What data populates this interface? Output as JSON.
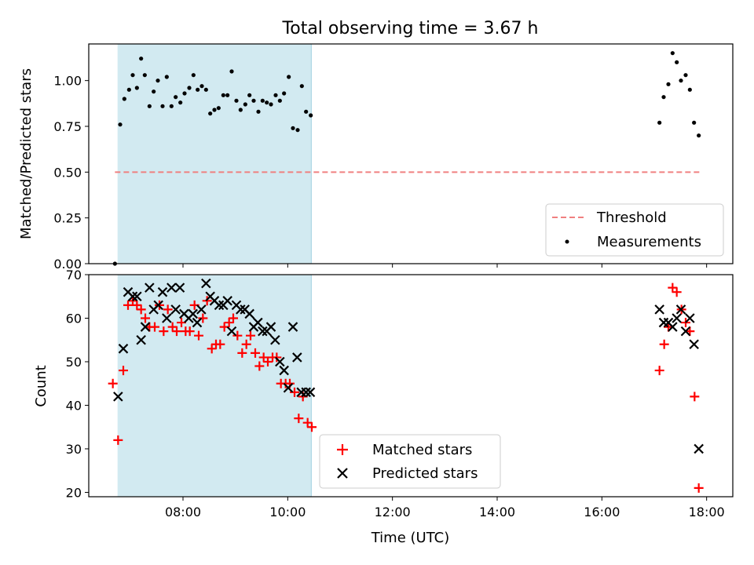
{
  "title": "Total observing time = 3.67 h",
  "colors": {
    "shade": "#add8e6",
    "threshold": "#f08080",
    "measurements": "#000000",
    "matched": "#ff0000",
    "predicted": "#000000"
  },
  "chart_data": [
    {
      "type": "scatter",
      "panel": "top",
      "ylabel": "Matched/Predicted stars",
      "xlabel": "",
      "xlim": [
        6.2,
        18.5
      ],
      "ylim": [
        0.0,
        1.2
      ],
      "yticks": [
        0.0,
        0.25,
        0.5,
        0.75,
        1.0
      ],
      "ytick_labels": [
        "0.00",
        "0.25",
        "0.50",
        "0.75",
        "1.00"
      ],
      "xticks": [
        8,
        10,
        12,
        14,
        16,
        18
      ],
      "grid": false,
      "legend_position": "lower-right",
      "shaded_interval": [
        6.75,
        10.45
      ],
      "threshold": {
        "name": "Threshold",
        "y": 0.5,
        "x_range": [
          6.7,
          17.9
        ],
        "style": "dashed"
      },
      "series": [
        {
          "name": "Measurements",
          "marker": "dot",
          "points": [
            [
              6.7,
              0.0
            ],
            [
              6.8,
              0.76
            ],
            [
              6.88,
              0.9
            ],
            [
              6.97,
              0.95
            ],
            [
              7.04,
              1.03
            ],
            [
              7.12,
              0.96
            ],
            [
              7.2,
              1.12
            ],
            [
              7.27,
              1.03
            ],
            [
              7.36,
              0.86
            ],
            [
              7.44,
              0.94
            ],
            [
              7.52,
              1.0
            ],
            [
              7.61,
              0.86
            ],
            [
              7.69,
              1.02
            ],
            [
              7.78,
              0.86
            ],
            [
              7.86,
              0.91
            ],
            [
              7.95,
              0.88
            ],
            [
              8.03,
              0.93
            ],
            [
              8.12,
              0.96
            ],
            [
              8.2,
              1.03
            ],
            [
              8.28,
              0.95
            ],
            [
              8.36,
              0.97
            ],
            [
              8.44,
              0.95
            ],
            [
              8.52,
              0.82
            ],
            [
              8.6,
              0.84
            ],
            [
              8.68,
              0.85
            ],
            [
              8.77,
              0.92
            ],
            [
              8.85,
              0.92
            ],
            [
              8.93,
              1.05
            ],
            [
              9.02,
              0.89
            ],
            [
              9.1,
              0.84
            ],
            [
              9.19,
              0.87
            ],
            [
              9.27,
              0.92
            ],
            [
              9.35,
              0.89
            ],
            [
              9.44,
              0.83
            ],
            [
              9.52,
              0.89
            ],
            [
              9.6,
              0.88
            ],
            [
              9.68,
              0.87
            ],
            [
              9.77,
              0.92
            ],
            [
              9.85,
              0.89
            ],
            [
              9.93,
              0.93
            ],
            [
              10.02,
              1.02
            ],
            [
              10.1,
              0.74
            ],
            [
              10.19,
              0.73
            ],
            [
              10.27,
              0.97
            ],
            [
              10.35,
              0.83
            ],
            [
              10.44,
              0.81
            ],
            [
              17.1,
              0.77
            ],
            [
              17.18,
              0.91
            ],
            [
              17.27,
              0.98
            ],
            [
              17.35,
              1.15
            ],
            [
              17.43,
              1.1
            ],
            [
              17.51,
              1.0
            ],
            [
              17.6,
              1.03
            ],
            [
              17.68,
              0.95
            ],
            [
              17.76,
              0.77
            ],
            [
              17.85,
              0.7
            ]
          ]
        }
      ]
    },
    {
      "type": "scatter",
      "panel": "bottom",
      "ylabel": "Count",
      "xlabel": "Time (UTC)",
      "xlim": [
        6.2,
        18.5
      ],
      "ylim": [
        19,
        70
      ],
      "yticks": [
        20,
        30,
        40,
        50,
        60,
        70
      ],
      "ytick_labels": [
        "20",
        "30",
        "40",
        "50",
        "60",
        "70"
      ],
      "xticks": [
        8,
        10,
        12,
        14,
        16,
        18
      ],
      "xtick_labels": [
        "08:00",
        "10:00",
        "12:00",
        "14:00",
        "16:00",
        "18:00"
      ],
      "grid": false,
      "legend_position": "lower-center",
      "shaded_interval": [
        6.75,
        10.45
      ],
      "series": [
        {
          "name": "Matched stars",
          "marker": "plus",
          "points": [
            [
              6.66,
              45
            ],
            [
              6.76,
              32
            ],
            [
              6.86,
              48
            ],
            [
              6.95,
              63
            ],
            [
              7.04,
              64
            ],
            [
              7.12,
              63
            ],
            [
              7.2,
              62
            ],
            [
              7.28,
              60
            ],
            [
              7.36,
              58
            ],
            [
              7.46,
              58
            ],
            [
              7.55,
              63
            ],
            [
              7.63,
              57
            ],
            [
              7.71,
              62
            ],
            [
              7.8,
              58
            ],
            [
              7.88,
              57
            ],
            [
              7.97,
              59
            ],
            [
              8.05,
              57
            ],
            [
              8.13,
              57
            ],
            [
              8.22,
              63
            ],
            [
              8.3,
              56
            ],
            [
              8.38,
              60
            ],
            [
              8.46,
              64
            ],
            [
              8.55,
              53
            ],
            [
              8.63,
              54
            ],
            [
              8.71,
              54
            ],
            [
              8.79,
              58
            ],
            [
              8.88,
              59
            ],
            [
              8.96,
              60
            ],
            [
              9.04,
              56
            ],
            [
              9.13,
              52
            ],
            [
              9.21,
              54
            ],
            [
              9.29,
              56
            ],
            [
              9.38,
              52
            ],
            [
              9.46,
              49
            ],
            [
              9.54,
              51
            ],
            [
              9.62,
              50
            ],
            [
              9.71,
              51
            ],
            [
              9.79,
              51
            ],
            [
              9.87,
              45
            ],
            [
              9.96,
              45
            ],
            [
              10.04,
              45
            ],
            [
              10.13,
              43
            ],
            [
              10.21,
              37
            ],
            [
              10.29,
              42
            ],
            [
              10.38,
              36
            ],
            [
              10.46,
              35
            ],
            [
              17.1,
              48
            ],
            [
              17.19,
              54
            ],
            [
              17.27,
              58
            ],
            [
              17.35,
              67
            ],
            [
              17.43,
              66
            ],
            [
              17.52,
              62
            ],
            [
              17.6,
              59
            ],
            [
              17.68,
              57
            ],
            [
              17.77,
              42
            ],
            [
              17.85,
              21
            ]
          ]
        },
        {
          "name": "Predicted stars",
          "marker": "x",
          "points": [
            [
              6.76,
              42
            ],
            [
              6.86,
              53
            ],
            [
              6.95,
              66
            ],
            [
              7.04,
              65
            ],
            [
              7.12,
              65
            ],
            [
              7.2,
              55
            ],
            [
              7.28,
              58
            ],
            [
              7.36,
              67
            ],
            [
              7.44,
              62
            ],
            [
              7.53,
              63
            ],
            [
              7.61,
              66
            ],
            [
              7.69,
              60
            ],
            [
              7.78,
              67
            ],
            [
              7.86,
              62
            ],
            [
              7.94,
              67
            ],
            [
              8.02,
              61
            ],
            [
              8.11,
              60
            ],
            [
              8.19,
              61
            ],
            [
              8.27,
              59
            ],
            [
              8.35,
              62
            ],
            [
              8.44,
              68
            ],
            [
              8.52,
              65
            ],
            [
              8.6,
              64
            ],
            [
              8.69,
              63
            ],
            [
              8.77,
              63
            ],
            [
              8.85,
              64
            ],
            [
              8.93,
              57
            ],
            [
              9.02,
              63
            ],
            [
              9.1,
              62
            ],
            [
              9.18,
              62
            ],
            [
              9.27,
              61
            ],
            [
              9.35,
              58
            ],
            [
              9.43,
              59
            ],
            [
              9.52,
              57
            ],
            [
              9.6,
              57
            ],
            [
              9.68,
              58
            ],
            [
              9.76,
              55
            ],
            [
              9.85,
              50
            ],
            [
              9.93,
              48
            ],
            [
              10.01,
              44
            ],
            [
              10.1,
              58
            ],
            [
              10.18,
              51
            ],
            [
              10.26,
              43
            ],
            [
              10.35,
              43
            ],
            [
              10.43,
              43
            ],
            [
              17.1,
              62
            ],
            [
              17.18,
              59
            ],
            [
              17.27,
              59
            ],
            [
              17.35,
              58
            ],
            [
              17.43,
              60
            ],
            [
              17.51,
              62
            ],
            [
              17.6,
              57
            ],
            [
              17.68,
              60
            ],
            [
              17.76,
              54
            ],
            [
              17.85,
              30
            ]
          ]
        }
      ]
    }
  ]
}
